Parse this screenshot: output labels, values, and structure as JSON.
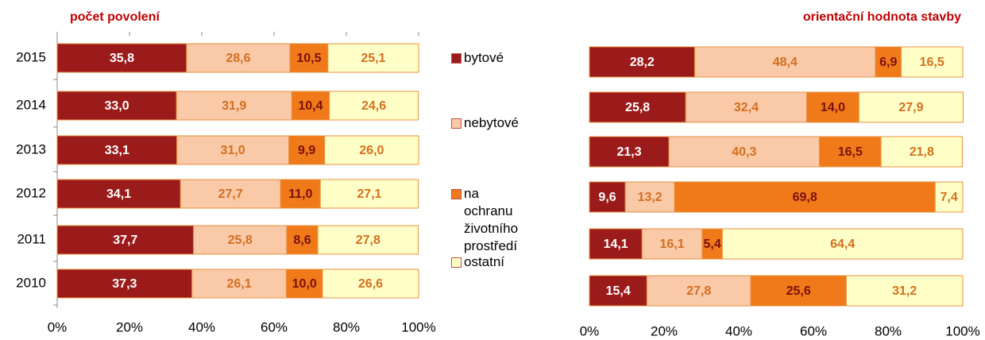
{
  "chart_data": [
    {
      "type": "stacked_bar_h",
      "title": "počet povolení",
      "categories": [
        "2015",
        "2014",
        "2013",
        "2012",
        "2011",
        "2010"
      ],
      "xlim": [
        0,
        100
      ],
      "xticks": [
        {
          "value": 0,
          "label": "0%"
        },
        {
          "value": 20,
          "label": "20%"
        },
        {
          "value": 40,
          "label": "40%"
        },
        {
          "value": 60,
          "label": "60%"
        },
        {
          "value": 80,
          "label": "80%"
        },
        {
          "value": 100,
          "label": "100%"
        }
      ],
      "series": [
        {
          "name": "bytové",
          "color": "#9b1b1b",
          "values": [
            35.8,
            33.0,
            33.1,
            34.1,
            37.7,
            37.3
          ],
          "value_labels": [
            "35,8",
            "33,0",
            "33,1",
            "34,1",
            "37,7",
            "37,3"
          ]
        },
        {
          "name": "nebytové",
          "color": "#f9c9a8",
          "values": [
            28.6,
            31.9,
            31.0,
            27.7,
            25.8,
            26.1
          ],
          "value_labels": [
            "28,6",
            "31,9",
            "31,0",
            "27,7",
            "25,8",
            "26,1"
          ]
        },
        {
          "name": "na ochranu životního prostředí",
          "color": "#f07a1a",
          "values": [
            10.5,
            10.4,
            9.9,
            11.0,
            8.6,
            10.0
          ],
          "value_labels": [
            "10,5",
            "10,4",
            "9,9",
            "11,0",
            "8,6",
            "10,0"
          ]
        },
        {
          "name": "ostatní",
          "color": "#ffffc8",
          "values": [
            25.1,
            24.6,
            26.0,
            27.1,
            27.8,
            26.6
          ],
          "value_labels": [
            "25,1",
            "24,6",
            "26,0",
            "27,1",
            "27,8",
            "26,6"
          ]
        }
      ]
    },
    {
      "type": "stacked_bar_h",
      "title": "orientační hodnota stavby",
      "xlim": [
        0,
        100
      ],
      "xticks": [
        {
          "value": 0,
          "label": "0%"
        },
        {
          "value": 20,
          "label": "20%"
        },
        {
          "value": 40,
          "label": "40%"
        },
        {
          "value": 60,
          "label": "60%"
        },
        {
          "value": 80,
          "label": "80%"
        },
        {
          "value": 100,
          "label": "100%"
        }
      ],
      "series": [
        {
          "color": "#9b1b1b",
          "values": [
            28.2,
            25.8,
            21.3,
            9.6,
            14.1,
            15.4
          ],
          "value_labels": [
            "28,2",
            "25,8",
            "21,3",
            "9,6",
            "14,1",
            "15,4"
          ]
        },
        {
          "color": "#f9c9a8",
          "values": [
            48.4,
            32.4,
            40.3,
            13.2,
            16.1,
            27.8
          ],
          "value_labels": [
            "48,4",
            "32,4",
            "40,3",
            "13,2",
            "16,1",
            "27,8"
          ]
        },
        {
          "color": "#f07a1a",
          "values": [
            6.9,
            14.0,
            16.5,
            69.8,
            5.4,
            25.6
          ],
          "value_labels": [
            "6,9",
            "14,0",
            "16,5",
            "69,8",
            "5,4",
            "25,6"
          ]
        },
        {
          "color": "#ffffc8",
          "values": [
            16.5,
            27.9,
            21.8,
            7.4,
            64.4,
            31.2
          ],
          "value_labels": [
            "16,5",
            "27,9",
            "21,8",
            "7,4",
            "64,4",
            "31,2"
          ]
        }
      ]
    }
  ]
}
